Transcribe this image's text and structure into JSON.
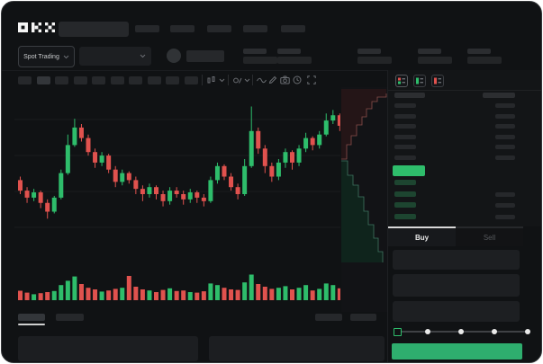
{
  "window": {
    "app": "OKX trading terminal"
  },
  "colors": {
    "up_green": "#2ebd6b",
    "down_red": "#e0524e",
    "buy_button_green": "#2eae6e",
    "mid_price_green": "#2ebd6b",
    "bid_row_green": "#1d4530",
    "tab_active_indicator": "#d8d8d8",
    "depth_ask_fill": "#241517",
    "depth_ask_line": "#8a4f4b",
    "depth_bid_fill": "#0f241c",
    "depth_bid_line": "#3f7560"
  },
  "header": {
    "logo_text": "OKX",
    "nav_placeholder_count": 5,
    "search": {
      "value": "",
      "placeholder": ""
    }
  },
  "subheader": {
    "market_selector_label": "Spot Trading",
    "stat_pair_count": 5
  },
  "chart_toolbar": {
    "timeframe_count": 10,
    "active_timeframe_index": 1,
    "icons": [
      "indicator-dropdown-icon",
      "overlay-dropdown-icon",
      "line-type-icon",
      "draw-pencil-icon",
      "camera-icon",
      "history-clock-icon",
      "fullscreen-icon"
    ]
  },
  "orderbook": {
    "view_icons": [
      "book-combined-icon",
      "book-bids-icon",
      "book-asks-icon"
    ],
    "active_view_index": 0,
    "ask_row_count": 6,
    "bid_row_count": 4,
    "bid_rows_with_amount": [
      1,
      2,
      3
    ]
  },
  "trade_panel": {
    "buy_tab_label": "Buy",
    "sell_tab_label": "Sell",
    "active_tab": "Buy",
    "field_count": 3,
    "slider": {
      "stop_count": 5,
      "selected_index": 0
    }
  },
  "bottom_tabs": {
    "left_tab_count": 2,
    "active_left_tab_index": 0,
    "right_control_count": 2,
    "panel_count": 2
  },
  "chart_data": [
    {
      "type": "candlestick",
      "title": "",
      "xlabel": "time (no labels shown)",
      "ylabel": "price (no labels shown)",
      "price_scale": "normalized 0-100 (no numeric axis visible in screenshot)",
      "grid": true,
      "up_color": "#2ebd6b",
      "down_color": "#e0524e",
      "candles_ohlc": [
        [
          48,
          50,
          40,
          42
        ],
        [
          42,
          44,
          35,
          38
        ],
        [
          38,
          43,
          36,
          41
        ],
        [
          41,
          42,
          32,
          35
        ],
        [
          35,
          37,
          26,
          30
        ],
        [
          30,
          39,
          29,
          38
        ],
        [
          38,
          54,
          37,
          52
        ],
        [
          52,
          74,
          51,
          68
        ],
        [
          68,
          83,
          67,
          78
        ],
        [
          78,
          80,
          70,
          72
        ],
        [
          72,
          74,
          62,
          64
        ],
        [
          64,
          66,
          55,
          58
        ],
        [
          58,
          64,
          56,
          62
        ],
        [
          62,
          63,
          52,
          54
        ],
        [
          54,
          56,
          44,
          47
        ],
        [
          47,
          54,
          45,
          52
        ],
        [
          52,
          53,
          46,
          48
        ],
        [
          48,
          50,
          40,
          43
        ],
        [
          43,
          45,
          36,
          40
        ],
        [
          40,
          46,
          38,
          44
        ],
        [
          44,
          45,
          37,
          40
        ],
        [
          40,
          42,
          33,
          36
        ],
        [
          36,
          44,
          34,
          42
        ],
        [
          42,
          44,
          38,
          40
        ],
        [
          40,
          42,
          34,
          37
        ],
        [
          37,
          43,
          35,
          41
        ],
        [
          41,
          42,
          35,
          38
        ],
        [
          38,
          40,
          33,
          36
        ],
        [
          36,
          50,
          35,
          48
        ],
        [
          48,
          58,
          46,
          56
        ],
        [
          56,
          57,
          48,
          50
        ],
        [
          50,
          52,
          42,
          44
        ],
        [
          44,
          46,
          37,
          40
        ],
        [
          40,
          60,
          39,
          56
        ],
        [
          56,
          90,
          55,
          76
        ],
        [
          76,
          78,
          63,
          66
        ],
        [
          66,
          68,
          52,
          56
        ],
        [
          56,
          58,
          47,
          50
        ],
        [
          50,
          60,
          48,
          58
        ],
        [
          58,
          66,
          55,
          64
        ],
        [
          64,
          65,
          54,
          58
        ],
        [
          58,
          68,
          56,
          66
        ],
        [
          66,
          75,
          64,
          72
        ],
        [
          72,
          73,
          65,
          68
        ],
        [
          68,
          76,
          66,
          74
        ],
        [
          74,
          86,
          73,
          82
        ],
        [
          82,
          88,
          80,
          85
        ],
        [
          85,
          86,
          76,
          79
        ]
      ],
      "volumes": [
        35,
        28,
        22,
        26,
        30,
        34,
        56,
        72,
        88,
        60,
        46,
        40,
        32,
        36,
        42,
        46,
        90,
        50,
        40,
        36,
        30,
        38,
        44,
        34,
        36,
        30,
        28,
        33,
        62,
        56,
        46,
        40,
        38,
        66,
        95,
        60,
        50,
        42,
        46,
        52,
        40,
        46,
        56,
        36,
        42,
        62,
        56,
        44
      ]
    },
    {
      "type": "area",
      "subtype": "market-depth (price vertical, cumulative size horizontal)",
      "asks_curve": [
        [
          0,
          78
        ],
        [
          6,
          62
        ],
        [
          11,
          52
        ],
        [
          17,
          40
        ],
        [
          23,
          31
        ],
        [
          28,
          22
        ],
        [
          34,
          14
        ],
        [
          40,
          9
        ],
        [
          50,
          5
        ]
      ],
      "bids_curve": [
        [
          0,
          80
        ],
        [
          7,
          96
        ],
        [
          13,
          107
        ],
        [
          19,
          120
        ],
        [
          25,
          136
        ],
        [
          30,
          151
        ],
        [
          36,
          166
        ],
        [
          41,
          181
        ],
        [
          46,
          193
        ]
      ]
    }
  ]
}
